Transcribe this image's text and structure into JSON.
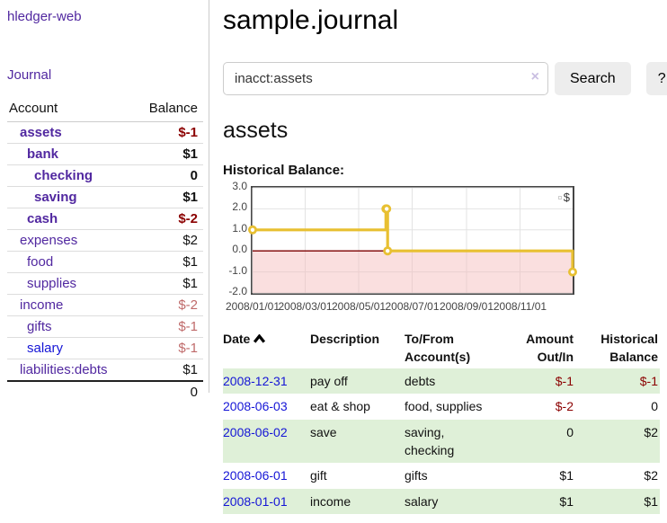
{
  "app": {
    "title": "hledger-web"
  },
  "sidebar": {
    "journal_link": "Journal",
    "accounts": {
      "headers": [
        "Account",
        "Balance"
      ],
      "rows": [
        {
          "name": "assets",
          "depth": 1,
          "bold": true,
          "balance": "$-1",
          "balance_style": "neg-strong"
        },
        {
          "name": "bank",
          "depth": 2,
          "bold": true,
          "balance": "$1",
          "balance_style": "pos"
        },
        {
          "name": "checking",
          "depth": 3,
          "bold": true,
          "balance": "0",
          "balance_style": "pos"
        },
        {
          "name": "saving",
          "depth": 3,
          "bold": true,
          "balance": "$1",
          "balance_style": "pos"
        },
        {
          "name": "cash",
          "depth": 2,
          "bold": true,
          "balance": "$-2",
          "balance_style": "neg-strong"
        },
        {
          "name": "expenses",
          "depth": 1,
          "bold": false,
          "balance": "$2",
          "balance_style": "pos"
        },
        {
          "name": "food",
          "depth": 2,
          "bold": false,
          "balance": "$1",
          "balance_style": "pos"
        },
        {
          "name": "supplies",
          "depth": 2,
          "bold": false,
          "balance": "$1",
          "balance_style": "pos"
        },
        {
          "name": "income",
          "depth": 1,
          "bold": false,
          "balance": "$-2",
          "balance_style": "neg-soft"
        },
        {
          "name": "gifts",
          "depth": 2,
          "bold": false,
          "balance": "$-1",
          "balance_style": "neg-soft"
        },
        {
          "name": "salary",
          "depth": 2,
          "bold": false,
          "balance": "$-1",
          "balance_style": "neg-soft",
          "link_style": "blue"
        },
        {
          "name": "liabilities:debts",
          "depth": 1,
          "bold": false,
          "balance": "$1",
          "balance_style": "pos"
        }
      ],
      "total": "0"
    }
  },
  "main": {
    "title": "sample.journal",
    "search": {
      "value": "inacct:assets",
      "clear_icon": "×",
      "button_label": "Search",
      "help_label": "?"
    },
    "account_heading": "assets",
    "chart_label": "Historical Balance:",
    "register": {
      "headers": [
        "Date",
        "Description",
        "To/From Account(s)",
        "Amount Out/In",
        "Historical Balance"
      ],
      "sort_column": "Date",
      "sort_direction": "ascending",
      "rows": [
        {
          "date": "2008-12-31",
          "description": "pay off",
          "accounts": "debts",
          "amount": "$-1",
          "amount_style": "neg",
          "balance": "$-1",
          "balance_style": "neg"
        },
        {
          "date": "2008-06-03",
          "description": "eat & shop",
          "accounts": "food, supplies",
          "amount": "$-2",
          "amount_style": "neg",
          "balance": "0",
          "balance_style": "pos"
        },
        {
          "date": "2008-06-02",
          "description": "save",
          "accounts": "saving, checking",
          "amount": "0",
          "amount_style": "pos",
          "balance": "$2",
          "balance_style": "pos"
        },
        {
          "date": "2008-06-01",
          "description": "gift",
          "accounts": "gifts",
          "amount": "$1",
          "amount_style": "pos",
          "balance": "$2",
          "balance_style": "pos"
        },
        {
          "date": "2008-01-01",
          "description": "income",
          "accounts": "salary",
          "amount": "$1",
          "amount_style": "pos",
          "balance": "$1",
          "balance_style": "pos"
        }
      ]
    }
  },
  "chart_data": {
    "type": "line",
    "title": "Historical Balance",
    "step": "after",
    "series": [
      {
        "name": "$",
        "color": "#e8c032",
        "points": [
          [
            "2008-01-01",
            1
          ],
          [
            "2008-06-01",
            2
          ],
          [
            "2008-06-02",
            2
          ],
          [
            "2008-06-03",
            0
          ],
          [
            "2008-12-31",
            -1
          ]
        ]
      }
    ],
    "xlim": [
      "2008-01-01",
      "2008-12-31"
    ],
    "ylim": [
      -2,
      3
    ],
    "yticks": [
      3,
      2,
      1,
      0,
      -1,
      -2
    ],
    "ytick_labels": [
      "3.0",
      "2.0",
      "1.0",
      "0.0",
      "-1.0",
      "-2.0"
    ],
    "xticks": [
      {
        "date": "2008-01-01",
        "label": "2008/01/01"
      },
      {
        "date": "2008-03-01",
        "label": "2008/03/01"
      },
      {
        "date": "2008-05-01",
        "label": "2008/05/01"
      },
      {
        "date": "2008-07-01",
        "label": "2008/07/01"
      },
      {
        "date": "2008-09-01",
        "label": "2008/09/01"
      },
      {
        "date": "2008-11-01",
        "label": "2008/11/01"
      }
    ],
    "grid": true,
    "gridline_color": "#e3e3e3",
    "negative_region_fill": "#f5b9b9",
    "zero_line_color": "#7c0000",
    "legend_position": "top-right"
  },
  "colors": {
    "link_purple": "#5128a0",
    "link_blue": "#1515d6",
    "negative_strong": "#8b0000",
    "negative_soft": "#bf6a6a",
    "row_green": "#dff0d8",
    "chart_gold": "#e8c032",
    "chart_negative_pink": "#fbdcdc"
  }
}
